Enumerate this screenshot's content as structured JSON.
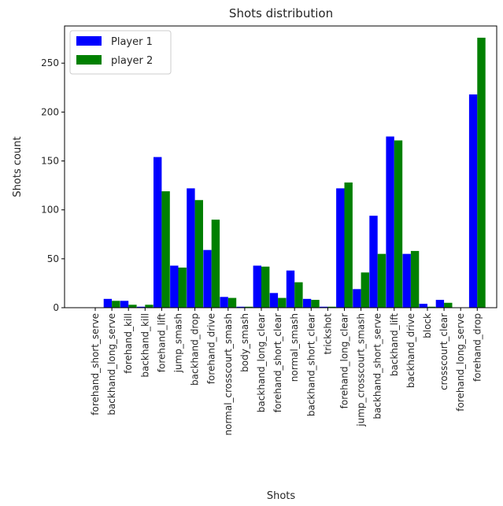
{
  "chart_data": {
    "type": "bar",
    "title": "Shots distribution",
    "xlabel": "Shots",
    "ylabel": "Shots count",
    "ylim": [
      0,
      288
    ],
    "yticks": [
      0,
      50,
      100,
      150,
      200,
      250
    ],
    "grid": false,
    "legend_position": "top-left",
    "categories": [
      "forehand_short_serve",
      "backhand_long_serve",
      "forehand_kill",
      "backhand_kill",
      "forehand_lift",
      "jump_smash",
      "backhand_drop",
      "forehand_drive",
      "normal_crosscourt_smash",
      "body_smash",
      "backhand_long_clear",
      "forehand_short_clear",
      "normal_smash",
      "backhand_short_clear",
      "trickshot",
      "forehand_long_clear",
      "jump_crosscourt_smash",
      "backhand_short_serve",
      "backhand_lift",
      "backhand_drive",
      "block",
      "crosscourt_clear",
      "forehand_long_serve",
      "forehand_drop"
    ],
    "series": [
      {
        "name": "Player 1",
        "color": "#0000ff",
        "values": [
          0,
          9,
          7,
          1,
          154,
          43,
          122,
          59,
          11,
          1,
          43,
          15,
          38,
          9,
          1,
          122,
          19,
          94,
          175,
          55,
          4,
          8,
          0,
          218
        ]
      },
      {
        "name": "player 2",
        "color": "#008000",
        "values": [
          0,
          7,
          3,
          3,
          119,
          41,
          110,
          90,
          10,
          1,
          42,
          10,
          26,
          8,
          1,
          128,
          36,
          55,
          171,
          58,
          1,
          5,
          0,
          276
        ]
      }
    ]
  }
}
